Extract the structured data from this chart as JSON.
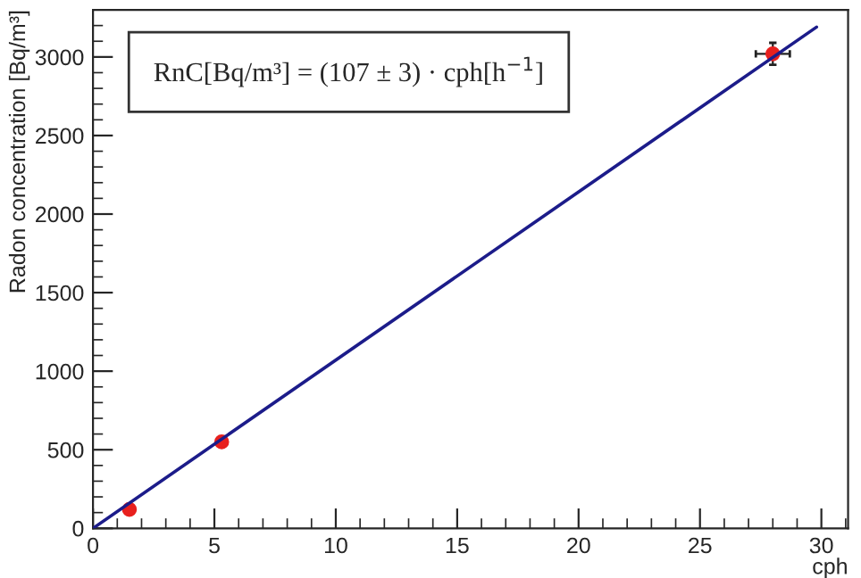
{
  "chart_data": {
    "type": "scatter",
    "xlabel": "cph",
    "ylabel": "Radon concentration [Bq/m³]",
    "annotations": [
      "RnC[Bq/m³] = (107 ± 3) · cph[h$^{−1}$]"
    ],
    "series": [
      {
        "color": "#e8201e",
        "marker": "circle",
        "x": [
          1.5,
          5.3,
          28
        ],
        "values": [
          120,
          550,
          3020
        ],
        "errors": [
          null,
          null,
          70
        ],
        "xerrors": [
          null,
          null,
          0.7
        ]
      },
      {
        "type": "line",
        "color": "#1c1c8a",
        "x": [
          0,
          29.8
        ],
        "values": [
          0,
          3190
        ]
      }
    ],
    "xlim": [
      0,
      31.1
    ],
    "ylim": [
      0,
      3300
    ],
    "xticks": [
      0,
      5,
      10,
      15,
      20,
      25,
      30
    ],
    "yticks": [
      0,
      500,
      1000,
      1500,
      2000,
      2500,
      3000
    ],
    "grid": false,
    "legend": false
  }
}
